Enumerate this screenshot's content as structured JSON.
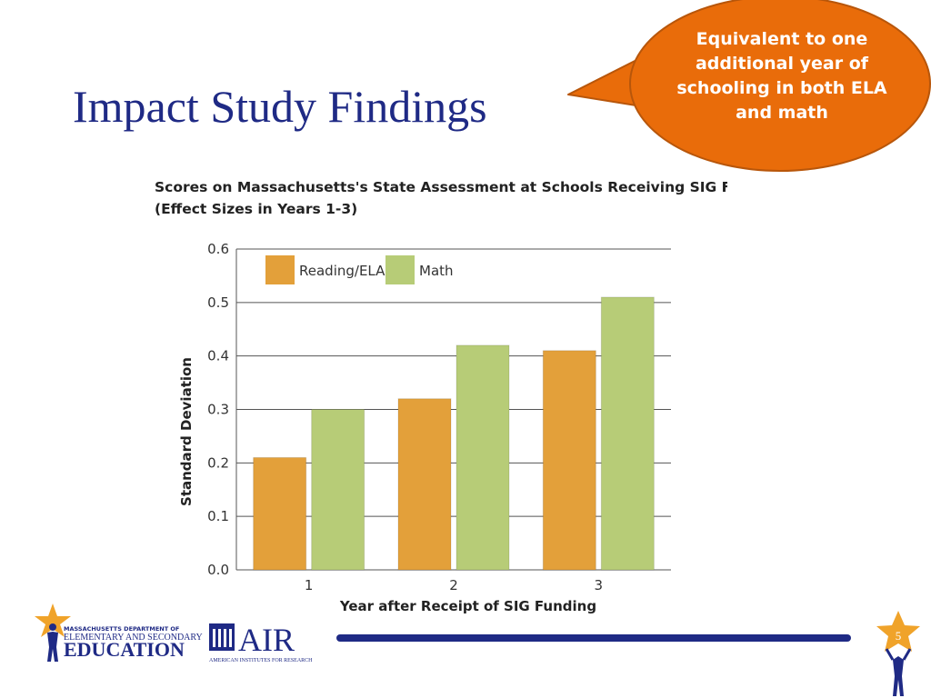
{
  "slide": {
    "title": "Impact Study Findings",
    "callout_text": "Equivalent to one additional year of schooling in both ELA and math",
    "page_number": "5"
  },
  "logos": {
    "mass_line1": "MASSACHUSETTS DEPARTMENT OF",
    "mass_line2": "ELEMENTARY AND SECONDARY",
    "mass_line3": "EDUCATION",
    "air_name": "AIR",
    "air_sub": "AMERICAN INSTITUTES FOR RESEARCH"
  },
  "colors": {
    "title": "#1f2a85",
    "callout": "#e96c0a",
    "reading": "#e3a03a",
    "math": "#b7cc77",
    "footer_bar": "#1f2a85"
  },
  "chart_data": {
    "type": "bar",
    "title_line1": "Scores on Massachusetts's State Assessment at Schools Receiving SIG Funding",
    "title_line2": "(Effect Sizes in Years 1-3)",
    "xlabel": "Year after Receipt of SIG Funding",
    "ylabel": "Standard Deviation",
    "categories": [
      "1",
      "2",
      "3"
    ],
    "series": [
      {
        "name": "Reading/ELA",
        "values": [
          0.21,
          0.32,
          0.41
        ]
      },
      {
        "name": "Math",
        "values": [
          0.3,
          0.42,
          0.51
        ]
      }
    ],
    "ylim": [
      0,
      0.6
    ],
    "yticks": [
      "0.0",
      "0.1",
      "0.2",
      "0.3",
      "0.4",
      "0.5",
      "0.6"
    ],
    "grid": true,
    "legend": "top-left"
  }
}
